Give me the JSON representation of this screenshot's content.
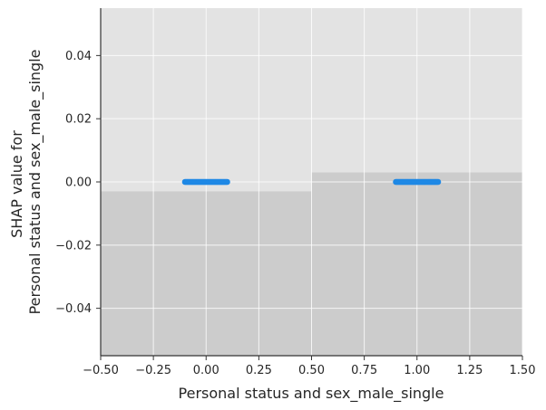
{
  "chart_data": {
    "type": "scatter",
    "title": "",
    "xlabel": "Personal status and sex_male_single",
    "ylabel_lines": [
      "SHAP value for",
      "Personal status and sex_male_single"
    ],
    "xlim": [
      -0.5,
      1.5
    ],
    "ylim": [
      -0.055,
      0.055
    ],
    "x_ticks": [
      -0.5,
      -0.25,
      0.0,
      0.25,
      0.5,
      0.75,
      1.0,
      1.25,
      1.5
    ],
    "x_tick_labels": [
      "−0.50",
      "−0.25",
      "0.00",
      "0.25",
      "0.50",
      "0.75",
      "1.00",
      "1.25",
      "1.50"
    ],
    "y_ticks": [
      -0.04,
      -0.02,
      0.0,
      0.02,
      0.04
    ],
    "y_tick_labels": [
      "−0.04",
      "−0.02",
      "0.00",
      "0.02",
      "0.04"
    ],
    "grid": true,
    "background": {
      "color": "#e3e3e3",
      "grid_color": "#ffffff",
      "histogram_color": "#cccccc",
      "histogram_bins": [
        {
          "x0": -0.5,
          "x1": 0.5,
          "y_top": -0.003
        },
        {
          "x0": 0.5,
          "x1": 1.5,
          "y_top": 0.003
        }
      ]
    },
    "series": [
      {
        "color": "#1e88e5",
        "points": [
          {
            "x_min": -0.1,
            "x_max": 0.1,
            "y": 0.0
          },
          {
            "x_min": 0.9,
            "x_max": 1.1,
            "y": 0.0
          }
        ]
      }
    ]
  }
}
